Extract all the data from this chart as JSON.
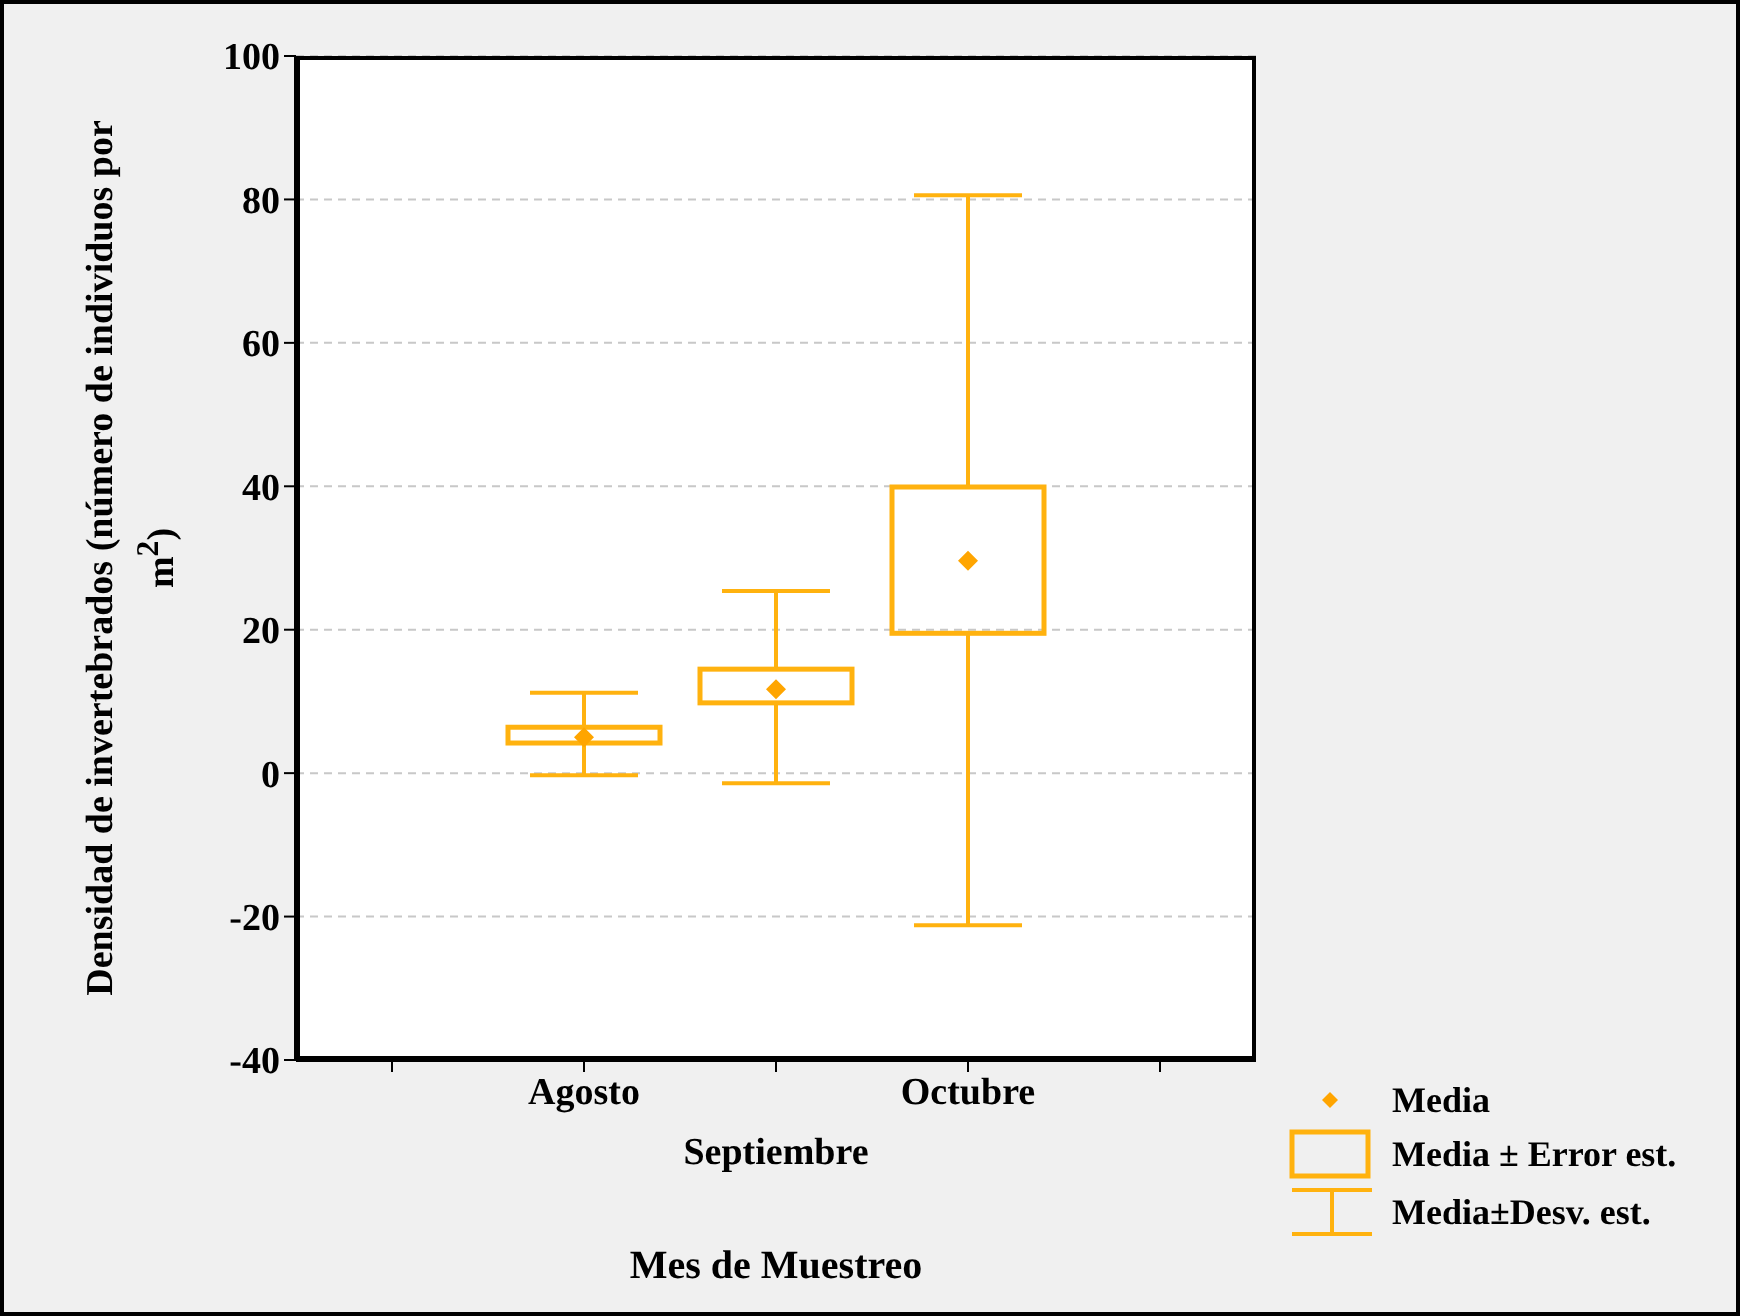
{
  "chart_data": {
    "type": "box",
    "categories": [
      "Agosto",
      "Septiembre",
      "Octubre"
    ],
    "xlabel": "Mes de Muestreo",
    "ylabel": "Densidad de invertebrados (número de individuos por m$^{2}$)",
    "ylim": [
      -40,
      100
    ],
    "yticks": [
      -40,
      -20,
      0,
      20,
      40,
      60,
      80,
      100
    ],
    "grid": "y",
    "legend": "bottom right",
    "series": [
      {
        "name": "Media",
        "type": "scatter",
        "marker": "diamond",
        "color": "#ffa500",
        "values": [
          5.0,
          11.7,
          29.6
        ]
      },
      {
        "name": "Media ± Error est.",
        "color": "#ffb20f",
        "boxes": [
          {
            "low": -0.3,
            "q1": 4.2,
            "q3": 6.4,
            "high": 11.2
          },
          {
            "low": -1.4,
            "q1": 9.8,
            "q3": 14.5,
            "high": 25.4
          },
          {
            "low": -21.2,
            "q1": 19.5,
            "q3": 39.9,
            "high": 80.6
          }
        ]
      }
    ],
    "annotations": [
      "Media±Desv. est."
    ]
  }
}
